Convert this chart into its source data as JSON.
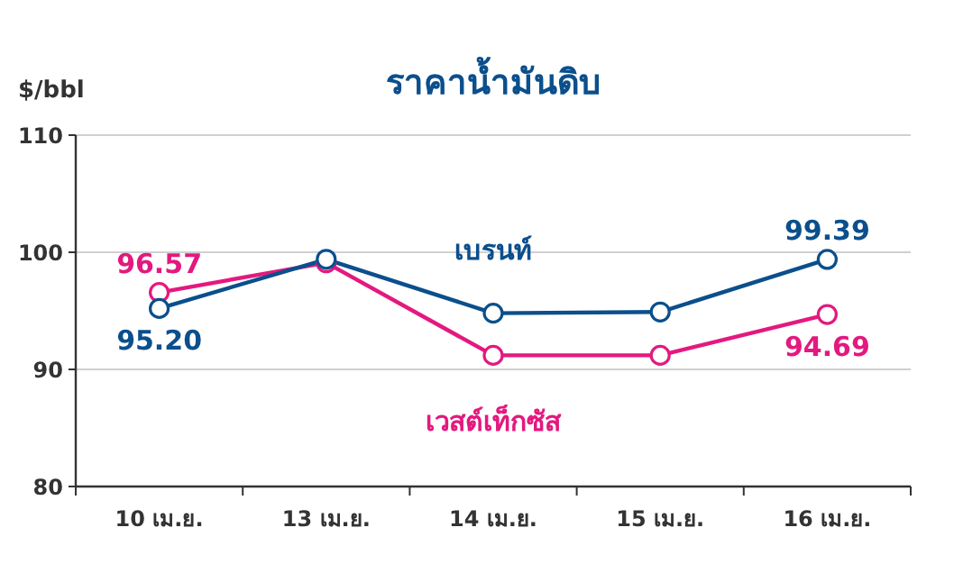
{
  "chart_data": {
    "type": "line",
    "title": "ราคาน้ำมันดิบ",
    "ylabel": "$/bbl",
    "categories": [
      "10 เม.ย.",
      "13 เม.ย.",
      "14 เม.ย.",
      "15 เม.ย.",
      "16 เม.ย."
    ],
    "ylim": [
      80,
      110
    ],
    "yticks": [
      80,
      90,
      100,
      110
    ],
    "grid": "y",
    "legend": false,
    "marker": "circle",
    "line_style": "solid",
    "series": [
      {
        "name": "เบรนท์",
        "color": "#0b4f8c",
        "values": [
          95.2,
          99.4,
          94.8,
          94.9,
          99.39
        ],
        "value_labels": [
          "95.20",
          null,
          null,
          null,
          "99.39"
        ]
      },
      {
        "name": "เวสต์เท็กซัส",
        "color": "#e3197f",
        "values": [
          96.57,
          99.1,
          91.2,
          91.2,
          94.69
        ],
        "value_labels": [
          "96.57",
          null,
          null,
          null,
          "94.69"
        ]
      }
    ]
  }
}
